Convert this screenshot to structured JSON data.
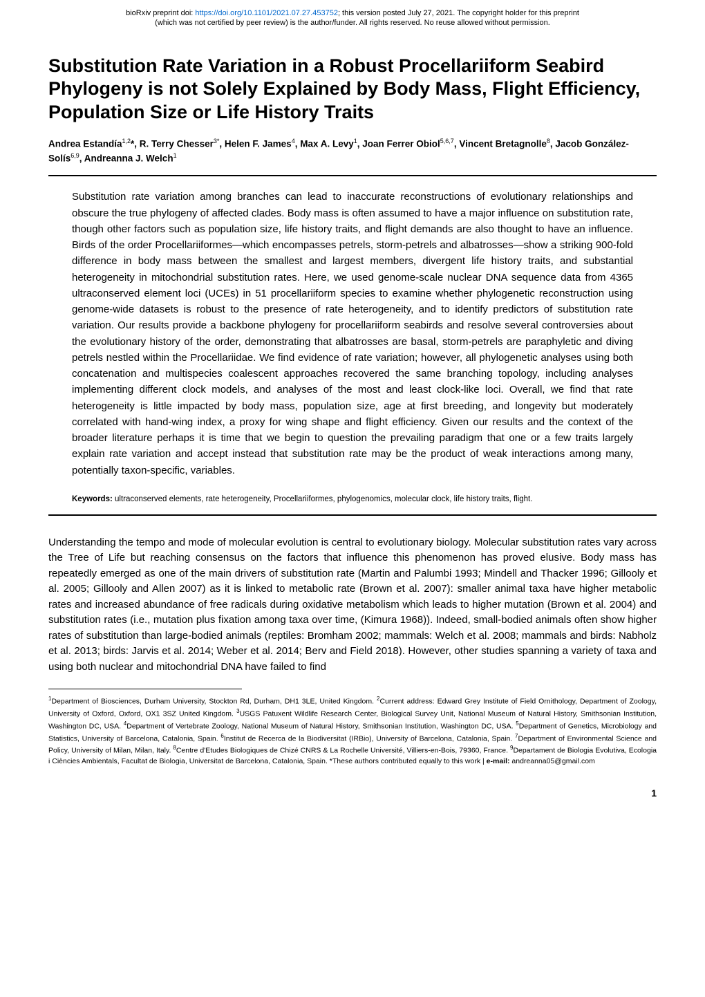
{
  "preprint": {
    "doi_prefix": "bioRxiv preprint doi: ",
    "doi_url": "https://doi.org/10.1101/2021.07.27.453752",
    "line1_suffix": "; this version posted July 27, 2021. The copyright holder for this preprint",
    "line2": "(which was not certified by peer review) is the author/funder. All rights reserved. No reuse allowed without permission."
  },
  "title": "Substitution Rate Variation in a Robust Procellariiform Seabird Phylogeny is not Solely Explained by Body Mass, Flight Efficiency, Population Size or Life History Traits",
  "authors_html": "Andrea Estandía<sup>1,2</sup>*, R. Terry Chesser<sup>3*</sup>, Helen F. James<sup>4</sup>, Max A. Levy<sup>1</sup>, Joan Ferrer Obiol<sup>5,6,7</sup>, Vincent Bretagnolle<sup>8</sup>, Jacob González-Solís<sup>6,9</sup>, Andreanna J. Welch<sup>1</sup>",
  "abstract": "Substitution rate variation among branches can lead to inaccurate reconstructions of evolutionary relationships and obscure the true phylogeny of affected clades. Body mass is often assumed to have a major influence on substitution rate, though other factors such as population size, life history traits, and flight demands are also thought to have an influence. Birds of the order Procellariiformes—which encompasses petrels, storm-petrels and albatrosses—show a striking 900-fold difference in body mass between the smallest and largest members, divergent life history traits, and substantial heterogeneity in mitochondrial substitution rates. Here, we used genome-scale nuclear DNA sequence data from 4365 ultraconserved element loci (UCEs) in 51 procellariiform species to examine whether phylogenetic reconstruction using genome-wide datasets is robust to the presence of rate heterogeneity, and to identify predictors of substitution rate variation. Our results provide a backbone phylogeny for procellariiform seabirds and resolve several controversies about the evolutionary history of the order, demonstrating that albatrosses are basal, storm-petrels are paraphyletic and diving petrels nestled within the Procellariidae. We find evidence of rate variation; however, all phylogenetic analyses using both concatenation and multispecies coalescent approaches recovered the same branching topology, including analyses implementing different clock models, and analyses of the most and least clock-like loci. Overall, we find that rate heterogeneity is little impacted by body mass, population size, age at first breeding, and longevity but moderately correlated with hand-wing index, a proxy for wing shape and flight efficiency. Given our results and the context of the broader literature perhaps it is time that we begin to question the prevailing paradigm that one or a few traits largely explain rate variation and accept instead that substitution rate may be the product of weak interactions among many, potentially taxon-specific, variables.",
  "keywords": {
    "label": "Keywords:",
    "text": " ultraconserved elements, rate heterogeneity, Procellariiformes, phylogenomics, molecular clock, life history traits, flight."
  },
  "body": "Understanding the tempo and mode of molecular evolution is central to evolutionary biology. Molecular substitution rates vary across the Tree of Life but reaching consensus on the factors that influence this phenomenon has proved elusive. Body mass has repeatedly emerged as one of the main drivers of substitution rate (Martin and Palumbi 1993; Mindell and Thacker 1996; Gillooly et al. 2005; Gillooly and Allen 2007) as it is linked to metabolic rate (Brown et al. 2007): smaller animal taxa have higher metabolic rates and increased abundance of free radicals during oxidative metabolism which leads to higher mutation (Brown et al. 2004) and substitution rates (i.e., mutation plus fixation among taxa over time, (Kimura 1968)). Indeed, small-bodied animals often show higher rates of substitution than large-bodied animals (reptiles: Bromham 2002; mammals: Welch et al. 2008; mammals and birds: Nabholz et al. 2013; birds: Jarvis et al. 2014; Weber et al. 2014; Berv and Field 2018). However, other studies spanning a variety of taxa and using both nuclear and mitochondrial DNA have failed to find",
  "affiliations_html": "<sup>1</sup>Department of Biosciences, Durham University, Stockton Rd, Durham, DH1 3LE, United Kingdom. <sup>2</sup>Current address: Edward Grey Institute of Field Ornithology, Department of Zoology, University of Oxford, Oxford, OX1 3SZ United Kingdom. <sup>3</sup>USGS Patuxent Wildlife Research Center, Biological Survey Unit, National Museum of Natural History, Smithsonian Institution, Washington DC, USA. <sup>4</sup>Department of Vertebrate Zoology, National Museum of Natural History, Smithsonian Institution, Washington DC, USA. <sup>5</sup>Department of Genetics, Microbiology and Statistics, University of Barcelona, Catalonia, Spain. <sup>6</sup>Institut de Recerca de la Biodiversitat (IRBio), University of Barcelona, Catalonia, Spain. <sup>7</sup>Department of Environmental Science and Policy, University of Milan, Milan, Italy. <sup>8</sup>Centre d'Etudes Biologiques de Chizé CNRS & La Rochelle Université, Villiers-en-Bois, 79360, France. <sup>9</sup>Departament de Biologia Evolutiva, Ecologia i Ciències Ambientals, Facultat de Biologia, Universitat de Barcelona, Catalonia, Spain. *These authors contributed equally to this work | <b>e-mail:</b> andreanna05@gmail.com",
  "page_number": "1",
  "colors": {
    "link": "#0066cc",
    "text": "#000000",
    "background": "#ffffff"
  }
}
